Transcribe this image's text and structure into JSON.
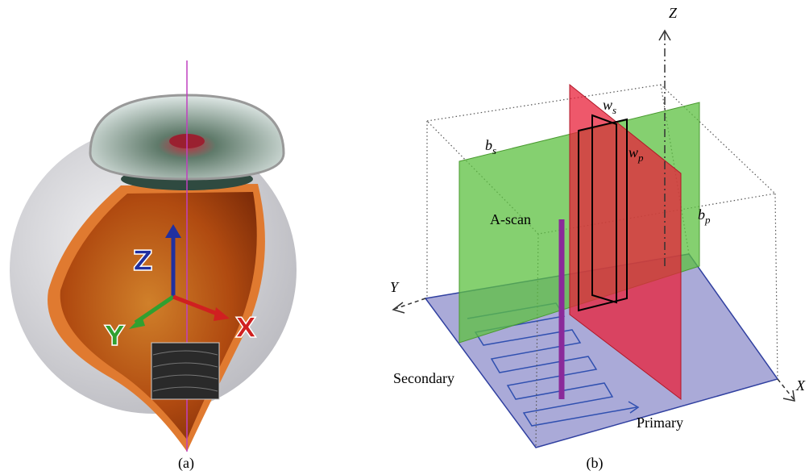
{
  "panel_a": {
    "caption": "(a)",
    "axes": {
      "z": "Z",
      "y": "Y",
      "x": "X"
    }
  },
  "panel_b": {
    "caption": "(b)",
    "axes": {
      "z": "Z",
      "y": "Y",
      "x": "X"
    },
    "labels": {
      "ws": {
        "base": "w",
        "sub": "s"
      },
      "wp": {
        "base": "w",
        "sub": "p"
      },
      "bs": {
        "base": "b",
        "sub": "s"
      },
      "bp": {
        "base": "b",
        "sub": "p"
      },
      "ascan": "A-scan",
      "secondary": "Secondary",
      "primary": "Primary"
    }
  }
}
